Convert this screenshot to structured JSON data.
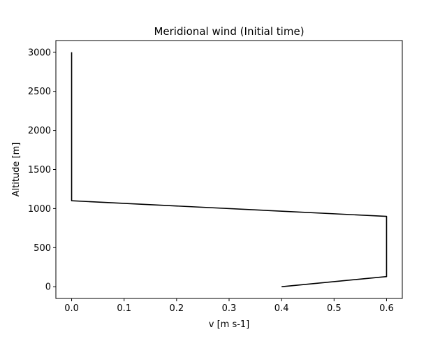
{
  "chart_data": {
    "type": "line",
    "title": "Meridional wind (Initial time)",
    "xlabel": "v [m s-1]",
    "ylabel": "Altitude [m]",
    "xlim": [
      -0.03,
      0.63
    ],
    "ylim": [
      -150,
      3150
    ],
    "x_ticks": [
      0.0,
      0.1,
      0.2,
      0.3,
      0.4,
      0.5,
      0.6
    ],
    "x_tick_labels": [
      "0.0",
      "0.1",
      "0.2",
      "0.3",
      "0.4",
      "0.5",
      "0.6"
    ],
    "y_ticks": [
      0,
      500,
      1000,
      1500,
      2000,
      2500,
      3000
    ],
    "y_tick_labels": [
      "0",
      "500",
      "1000",
      "1500",
      "2000",
      "2500",
      "3000"
    ],
    "grid": false,
    "series": [
      {
        "color": "#000000",
        "points": [
          {
            "x": 0.4,
            "y": 0
          },
          {
            "x": 0.6,
            "y": 130
          },
          {
            "x": 0.6,
            "y": 900
          },
          {
            "x": 0.0,
            "y": 1100
          },
          {
            "x": 0.0,
            "y": 3000
          }
        ]
      }
    ]
  }
}
